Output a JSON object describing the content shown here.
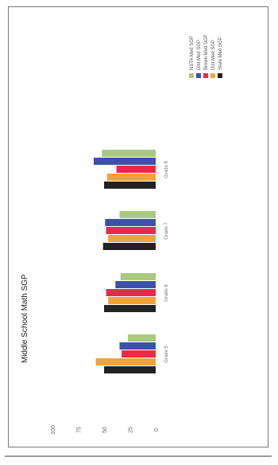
{
  "chart_data": {
    "type": "bar",
    "orientation": "horizontal-rotated",
    "title": "Middle School Math SGP",
    "categories": [
      "Grade 5",
      "Grade 6",
      "Grade 7",
      "Grade 8"
    ],
    "series": [
      {
        "name": "State Med SGP",
        "color": "#222222",
        "values": [
          50,
          50,
          51,
          50
        ]
      },
      {
        "name": "Dist Med SGP",
        "color": "#f2a23a",
        "values": [
          58,
          46,
          46,
          47
        ]
      },
      {
        "name": "Brown Med SGP",
        "color": "#e52a4a",
        "values": [
          33,
          48,
          48,
          38
        ]
      },
      {
        "name": "Dist Med SGP",
        "color": "#3d51a8",
        "values": [
          35,
          39,
          49,
          60
        ]
      },
      {
        "name": "NSTA Med SGP",
        "color": "#a9c97e",
        "values": [
          27,
          34,
          35,
          52
        ]
      }
    ],
    "ylim": [
      0,
      100
    ],
    "yticks": [
      0,
      25,
      50,
      75,
      100
    ],
    "grid": false,
    "legend": "top-right"
  }
}
